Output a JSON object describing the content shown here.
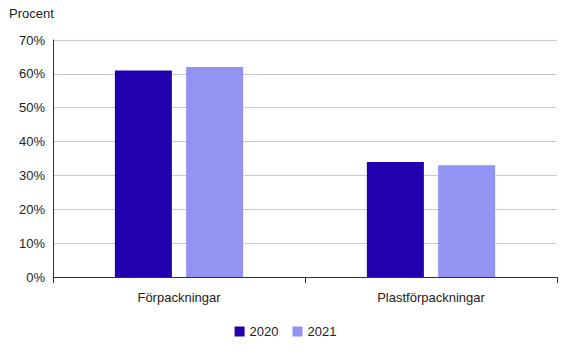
{
  "chart_data": {
    "type": "bar",
    "y_label": "Procent",
    "categories": [
      "Förpackningar",
      "Plastförpackningar"
    ],
    "series": [
      {
        "name": "2020",
        "color": "#2200b0",
        "values": [
          61,
          34
        ]
      },
      {
        "name": "2021",
        "color": "#9393f3",
        "values": [
          62,
          33
        ]
      }
    ],
    "ylim": [
      0,
      70
    ],
    "yticks": [
      {
        "value": 0,
        "label": "0%"
      },
      {
        "value": 10,
        "label": "10%"
      },
      {
        "value": 20,
        "label": "20%"
      },
      {
        "value": 30,
        "label": "30%"
      },
      {
        "value": 40,
        "label": "40%"
      },
      {
        "value": 50,
        "label": "50%"
      },
      {
        "value": 60,
        "label": "60%"
      },
      {
        "value": 70,
        "label": "70%"
      }
    ],
    "grid": true,
    "legend": "bottom"
  }
}
